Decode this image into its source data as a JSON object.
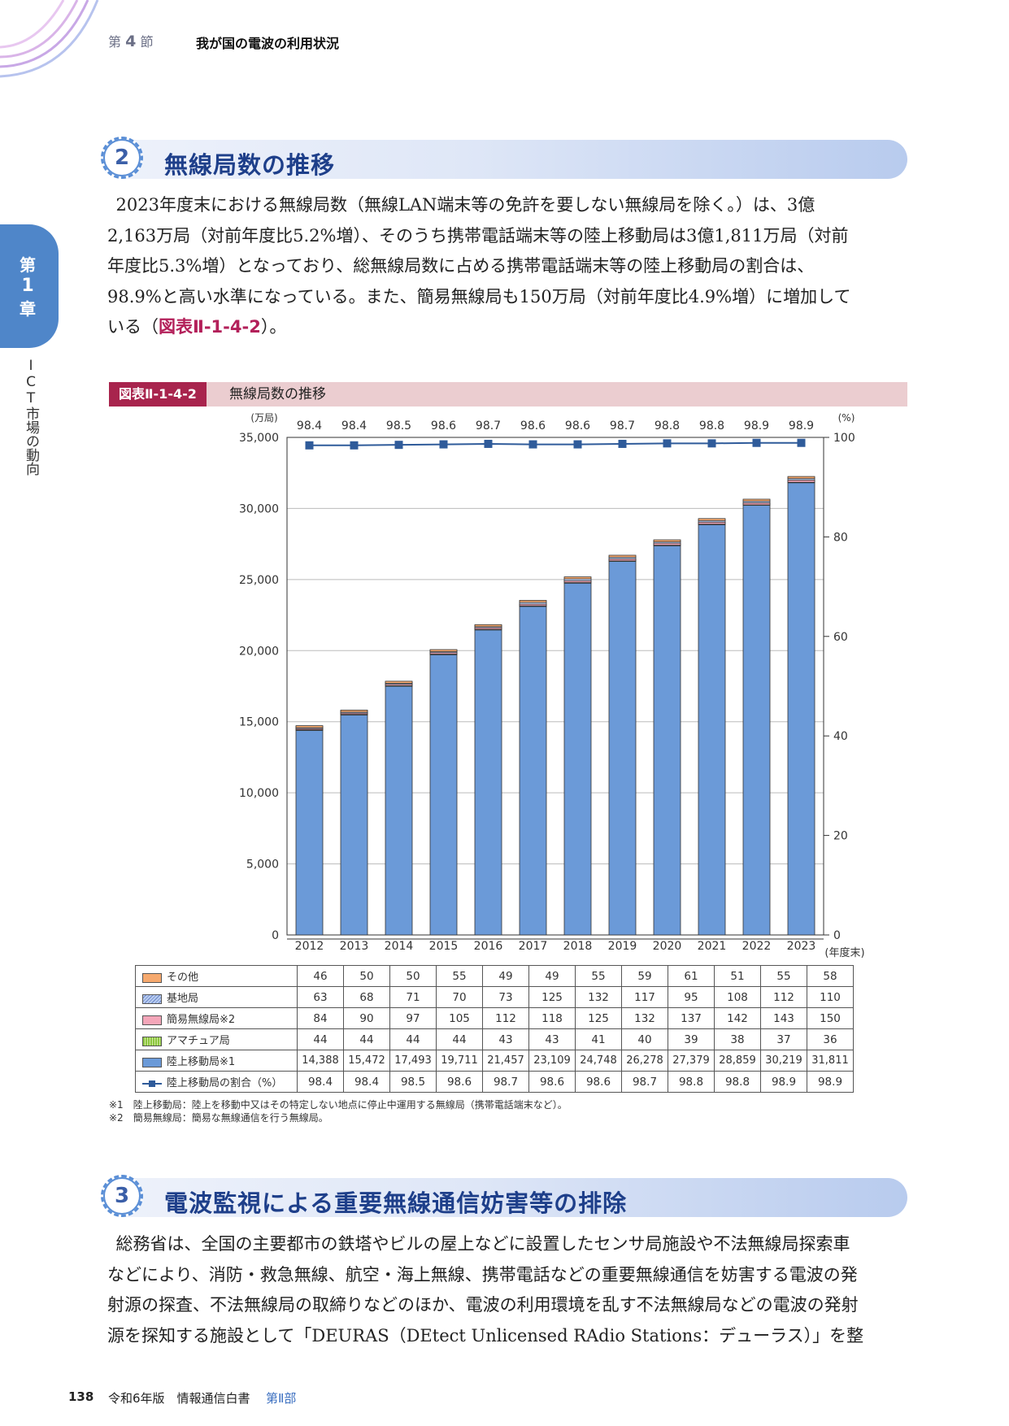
{
  "header": {
    "section_prefix": "第",
    "section_num": "4",
    "section_suffix": "節",
    "section_title": "我が国の電波の利用状況"
  },
  "side_tab": {
    "line1": "第",
    "line2": "1",
    "line3": "章",
    "vertical_text": "ICT市場の動向"
  },
  "section2": {
    "number": "2",
    "title": "無線局数の推移",
    "paragraph_lines": [
      "2023年度末における無線局数（無線LAN端末等の免許を要しない無線局を除く。）は、3億",
      "2,163万局（対前年度比5.2%増）、そのうち携帯電話端末等の陸上移動局は3億1,811万局（対前",
      "年度比5.3%増）となっており、総無線局数に占める携帯電話端末等の陸上移動局の割合は、",
      "98.9%と高い水準になっている。また、簡易無線局も150万局（対前年度比4.9%増）に増加して"
    ],
    "last_line_pre": "いる（",
    "last_line_ref": "図表Ⅱ-1-4-2",
    "last_line_post": "）。"
  },
  "figure": {
    "number": "図表Ⅱ-1-4-2",
    "title": "無線局数の推移"
  },
  "chart_data": {
    "type": "bar",
    "stacked": true,
    "categories": [
      "2012",
      "2013",
      "2014",
      "2015",
      "2016",
      "2017",
      "2018",
      "2019",
      "2020",
      "2021",
      "2022",
      "2023"
    ],
    "x_unit": "(年度末)",
    "y_left_unit": "(万局)",
    "y_left_ticks": [
      "35,000",
      "30,000",
      "25,000",
      "20,000",
      "15,000",
      "10,000",
      "5,000",
      "0"
    ],
    "ylim": [
      0,
      35000
    ],
    "y_right_unit": "(%)",
    "y_right_ticks": [
      "100",
      "80",
      "60",
      "40",
      "20",
      "0"
    ],
    "y2lim": [
      0,
      100
    ],
    "series": [
      {
        "name": "陸上移動局※1",
        "color": "#6b9ad8",
        "values": [
          14388,
          15472,
          17493,
          19711,
          21457,
          23109,
          24748,
          26278,
          27379,
          28859,
          30219,
          31811
        ],
        "labels": [
          "14,388",
          "15,472",
          "17,493",
          "19,711",
          "21,457",
          "23,109",
          "24,748",
          "26,278",
          "27,379",
          "28,859",
          "30,219",
          "31,811"
        ]
      },
      {
        "name": "アマチュア局",
        "color": "#8cc63f",
        "values": [
          44,
          44,
          44,
          44,
          43,
          43,
          41,
          40,
          39,
          38,
          37,
          36
        ]
      },
      {
        "name": "簡易無線局※2",
        "color": "#f4a6b9",
        "values": [
          84,
          90,
          97,
          105,
          112,
          118,
          125,
          132,
          137,
          142,
          143,
          150
        ]
      },
      {
        "name": "基地局",
        "color": "#b9cdf0",
        "values": [
          63,
          68,
          71,
          70,
          73,
          125,
          132,
          117,
          95,
          108,
          112,
          110
        ]
      },
      {
        "name": "その他",
        "color": "#f6a96e",
        "values": [
          46,
          50,
          50,
          55,
          49,
          49,
          55,
          59,
          61,
          51,
          55,
          58
        ]
      }
    ],
    "line_series": {
      "name": "陸上移動局の割合（%）",
      "color": "#2f5b9a",
      "axis": "right",
      "values": [
        98.4,
        98.4,
        98.5,
        98.6,
        98.7,
        98.6,
        98.6,
        98.7,
        98.8,
        98.8,
        98.9,
        98.9
      ]
    },
    "grid": true
  },
  "table": {
    "rows_order": [
      "その他",
      "基地局",
      "簡易無線局※2",
      "アマチュア局",
      "陸上移動局※1",
      "陸上移動局の割合（%）"
    ]
  },
  "notes": [
    "※1　陸上移動局：陸上を移動中又はその特定しない地点に停止中運用する無線局（携帯電話端末など）。",
    "※2　簡易無線局：簡易な無線通信を行う無線局。"
  ],
  "section3": {
    "number": "3",
    "title": "電波監視による重要無線通信妨害等の排除",
    "paragraph_lines": [
      "総務省は、全国の主要都市の鉄塔やビルの屋上などに設置したセンサ局施設や不法無線局探索車",
      "などにより、消防・救急無線、航空・海上無線、携帯電話などの重要無線通信を妨害する電波の発",
      "射源の探査、不法無線局の取締りなどのほか、電波の利用環境を乱す不法無線局などの電波の発射",
      "源を探知する施設として「DEURAS（DEtect Unlicensed RAdio Stations：デューラス）」を整"
    ]
  },
  "footer": {
    "page_number": "138",
    "book_title": "令和6年版　情報通信白書",
    "part": "第Ⅱ部"
  }
}
